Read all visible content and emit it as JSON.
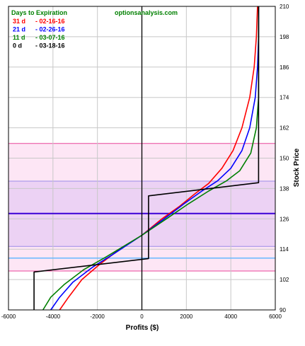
{
  "chart_data": {
    "type": "line",
    "xlabel": "Profits ($)",
    "ylabel": "Stock Price",
    "xlim": [
      -6000,
      6000
    ],
    "ylim": [
      90,
      210
    ],
    "x_ticks": [
      -6000,
      -4000,
      -2000,
      0,
      2000,
      4000,
      6000
    ],
    "y_ticks": [
      90,
      102,
      114,
      126,
      138,
      150,
      162,
      174,
      186,
      198,
      210
    ],
    "grid": true,
    "legend": {
      "placement": "top-left",
      "heading": "Days to Expiration",
      "entries": [
        {
          "days": "31 d",
          "date": "- 02-16-16",
          "color": "#ff0000"
        },
        {
          "days": "21 d",
          "date": "- 02-26-16",
          "color": "#0000ff"
        },
        {
          "days": "11 d",
          "date": "- 03-07-16",
          "color": "#008000"
        },
        {
          "days": "0 d",
          "date": "- 03-18-16",
          "color": "#000000"
        }
      ]
    },
    "watermark": "optionsanalysis.com",
    "bands": [
      {
        "y0": 105.4,
        "y1": 155.8,
        "fill": "#fde6f5",
        "stroke": "#e8469a"
      },
      {
        "y0": 115.1,
        "y1": 140.9,
        "fill": "#ecd2f4",
        "stroke": "#9c8ce8"
      }
    ],
    "horizontal_lines": [
      {
        "y": 128.1,
        "color": "#3b00d6"
      },
      {
        "y": 110.5,
        "color": "#66b8ff"
      }
    ],
    "series": [
      {
        "name": "31 d",
        "color": "#ff0000",
        "points": [
          [
            -3700,
            90
          ],
          [
            -3300,
            95
          ],
          [
            -2700,
            102
          ],
          [
            -1900,
            108
          ],
          [
            -1000,
            114
          ],
          [
            0,
            119.5
          ],
          [
            900,
            126
          ],
          [
            1700,
            131
          ],
          [
            2400,
            136
          ],
          [
            3000,
            140
          ],
          [
            3600,
            146
          ],
          [
            4100,
            153
          ],
          [
            4500,
            162
          ],
          [
            4850,
            174
          ],
          [
            5050,
            186
          ],
          [
            5150,
            198
          ],
          [
            5200,
            210
          ]
        ]
      },
      {
        "name": "21 d",
        "color": "#0000ff",
        "points": [
          [
            -4100,
            90
          ],
          [
            -3700,
            95
          ],
          [
            -3100,
            101
          ],
          [
            -2200,
            107
          ],
          [
            -1300,
            112
          ],
          [
            0,
            119.5
          ],
          [
            1000,
            126
          ],
          [
            1900,
            132
          ],
          [
            2700,
            137
          ],
          [
            3400,
            141
          ],
          [
            4000,
            146
          ],
          [
            4500,
            153
          ],
          [
            4850,
            162
          ],
          [
            5100,
            174
          ],
          [
            5200,
            186
          ],
          [
            5250,
            198
          ],
          [
            5250,
            210
          ]
        ]
      },
      {
        "name": "11 d",
        "color": "#008000",
        "points": [
          [
            -4450,
            90
          ],
          [
            -4100,
            95
          ],
          [
            -3500,
            100
          ],
          [
            -2600,
            106
          ],
          [
            -1600,
            111
          ],
          [
            0,
            119.5
          ],
          [
            1100,
            126
          ],
          [
            2100,
            132
          ],
          [
            3000,
            137
          ],
          [
            3800,
            141
          ],
          [
            4400,
            145
          ],
          [
            4900,
            152
          ],
          [
            5150,
            162
          ],
          [
            5250,
            174
          ],
          [
            5250,
            186
          ],
          [
            5250,
            198
          ],
          [
            5250,
            210
          ]
        ]
      },
      {
        "name": "0 d",
        "color": "#000000",
        "points": [
          [
            -4850,
            90
          ],
          [
            -4850,
            105
          ],
          [
            300,
            110.3
          ],
          [
            300,
            135.1
          ],
          [
            5250,
            140.3
          ],
          [
            5250,
            210
          ]
        ]
      }
    ],
    "vertical_lines": [
      {
        "x": 0,
        "color": "#000000"
      }
    ]
  }
}
